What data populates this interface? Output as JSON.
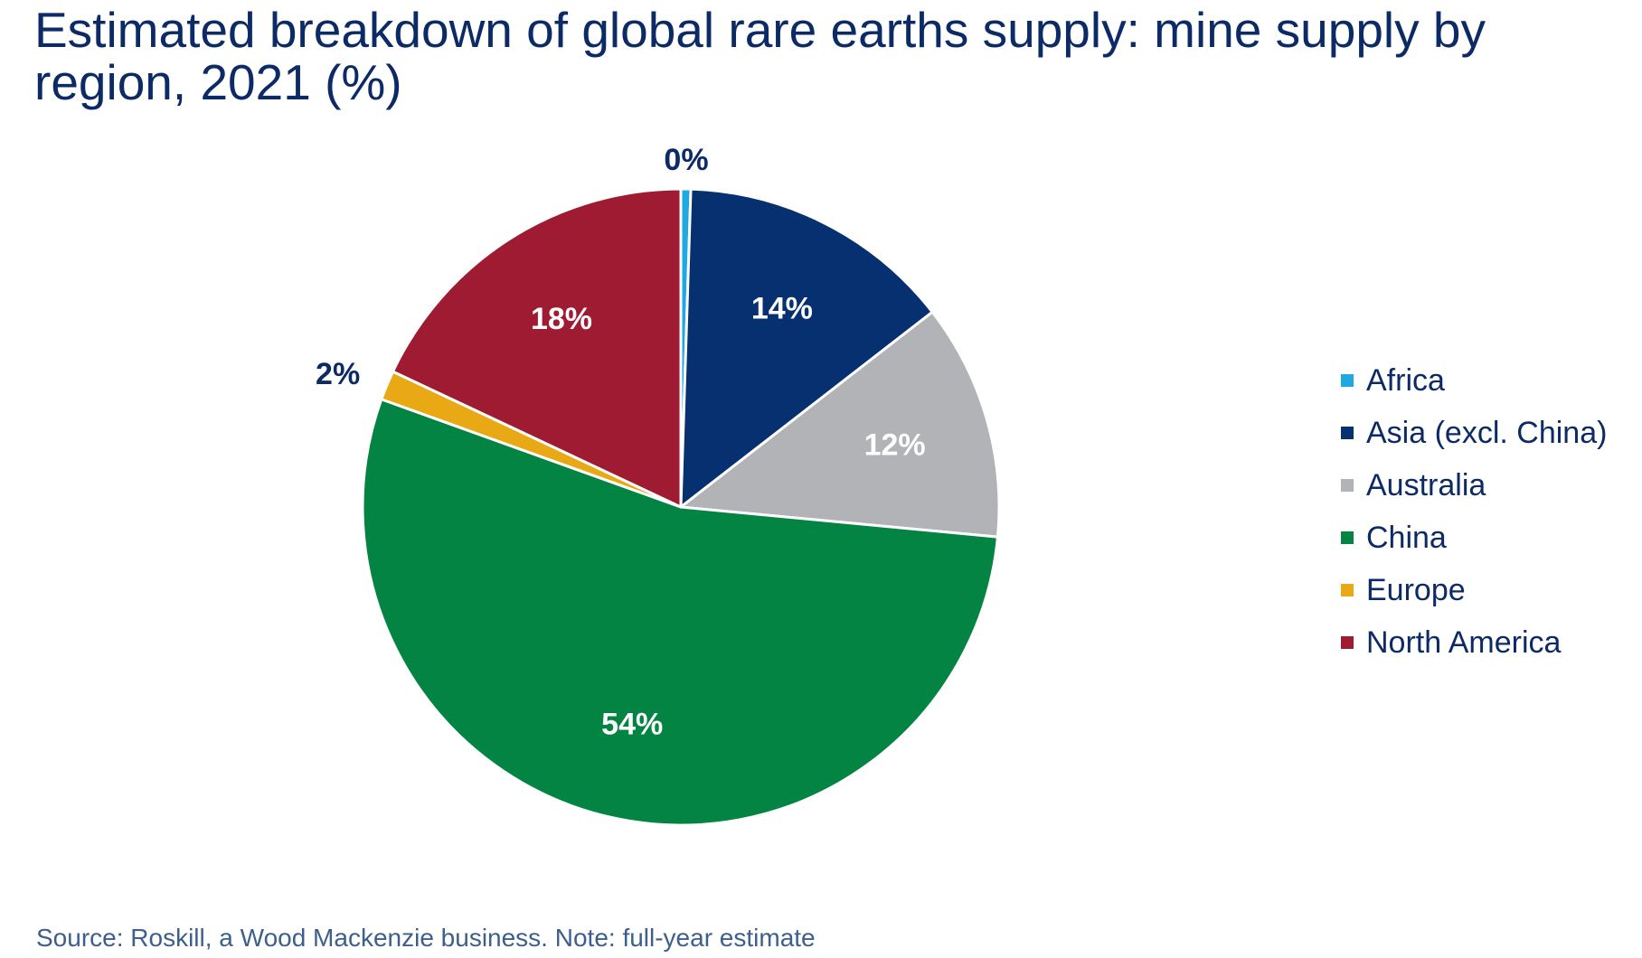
{
  "chart_data": {
    "type": "pie",
    "title": "Estimated breakdown of global rare earths supply: mine supply by region, 2021 (%)",
    "source": "Source: Roskill, a Wood Mackenzie business. Note: full-year estimate",
    "unit": "%",
    "legend_position": "right",
    "start_angle_deg": 0,
    "direction": "clockwise",
    "slices": [
      {
        "name": "Africa",
        "value": 0.5,
        "label": "0%",
        "color": "#1ea9e1",
        "label_style": "outside",
        "label_color": "#0c2a66"
      },
      {
        "name": "Asia (excl. China)",
        "value": 14,
        "label": "14%",
        "color": "#06306f",
        "label_style": "inside",
        "label_color": "#ffffff"
      },
      {
        "name": "Australia",
        "value": 12,
        "label": "12%",
        "color": "#b2b3b6",
        "label_style": "inside",
        "label_color": "#ffffff"
      },
      {
        "name": "China",
        "value": 54,
        "label": "54%",
        "color": "#048442",
        "label_style": "inside",
        "label_color": "#ffffff"
      },
      {
        "name": "Europe",
        "value": 1.5,
        "label": "2%",
        "color": "#e8a914",
        "label_style": "outside",
        "label_color": "#0c2a66"
      },
      {
        "name": "North America",
        "value": 18,
        "label": "18%",
        "color": "#9e1b32",
        "label_style": "inside",
        "label_color": "#ffffff"
      }
    ]
  }
}
